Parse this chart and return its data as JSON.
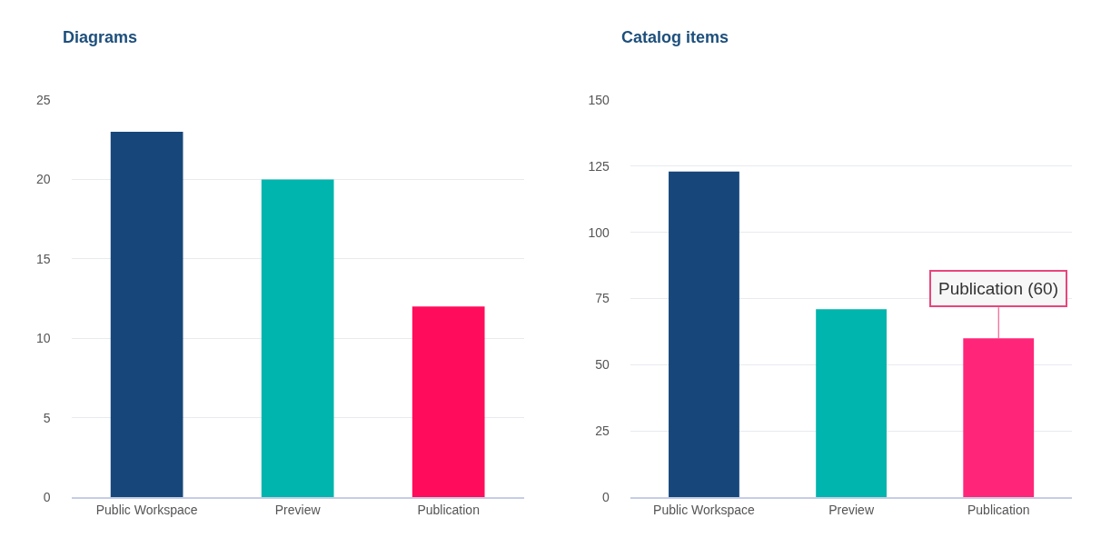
{
  "chart_data": [
    {
      "type": "bar",
      "title": "Diagrams",
      "categories": [
        "Public Workspace",
        "Preview",
        "Publication"
      ],
      "values": [
        23,
        20,
        12
      ],
      "colors": [
        "#17477a",
        "#00b5ad",
        "#ff0d5c"
      ],
      "ylim": [
        0,
        25
      ],
      "yticks": [
        0,
        5,
        10,
        15,
        20,
        25
      ],
      "grid": "y"
    },
    {
      "type": "bar",
      "title": "Catalog items",
      "categories": [
        "Public Workspace",
        "Preview",
        "Publication"
      ],
      "values": [
        123,
        71,
        60
      ],
      "colors": [
        "#17477a",
        "#00b5ad",
        "#ff2679"
      ],
      "ylim": [
        0,
        150
      ],
      "yticks": [
        0,
        25,
        50,
        75,
        100,
        125,
        150
      ],
      "grid": "y",
      "annotations": [
        {
          "text": "Publication (60)",
          "x": "Publication",
          "y": 60
        }
      ]
    }
  ]
}
